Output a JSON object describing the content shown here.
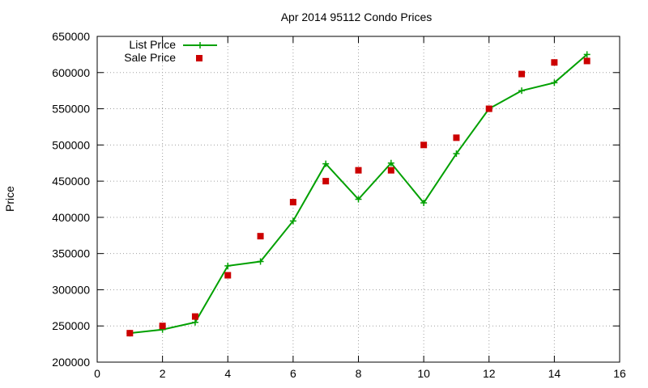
{
  "chart_data": {
    "type": "line",
    "title": "Apr 2014 95112 Condo Prices",
    "xlabel": "",
    "ylabel": "Price",
    "xlim": [
      0,
      16
    ],
    "ylim": [
      200000,
      650000
    ],
    "xticks": [
      0,
      2,
      4,
      6,
      8,
      10,
      12,
      14,
      16
    ],
    "yticks": [
      200000,
      250000,
      300000,
      350000,
      400000,
      450000,
      500000,
      550000,
      600000,
      650000
    ],
    "grid": true,
    "legend_position": "top-left",
    "series": [
      {
        "name": "List Price",
        "style": "line-with-plus-markers",
        "color": "#00a000",
        "x": [
          1,
          2,
          3,
          4,
          5,
          6,
          7,
          8,
          9,
          10,
          11,
          12,
          13,
          14,
          15
        ],
        "values": [
          240000,
          245000,
          255000,
          333000,
          339000,
          395000,
          474000,
          425000,
          475000,
          420000,
          488000,
          550000,
          575000,
          586000,
          625000
        ]
      },
      {
        "name": "Sale Price",
        "style": "square-markers",
        "color": "#cc0000",
        "x": [
          1,
          2,
          3,
          4,
          5,
          6,
          7,
          8,
          9,
          10,
          11,
          12,
          13,
          14,
          15
        ],
        "values": [
          240000,
          250000,
          263000,
          320000,
          374000,
          421000,
          450000,
          465000,
          465000,
          500000,
          510000,
          550000,
          598000,
          614000,
          616000
        ]
      }
    ]
  }
}
